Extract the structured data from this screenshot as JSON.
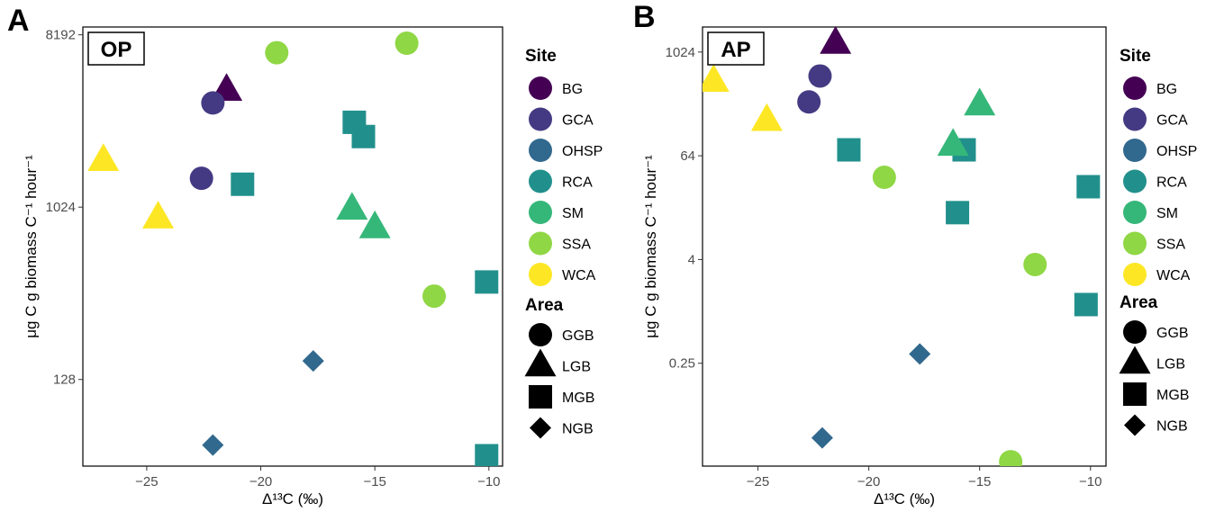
{
  "chart_data": [
    {
      "type": "scatter",
      "panel_letter": "A",
      "tag": "OP",
      "xlabel": "Δ¹³C (‰)",
      "ylabel": "μg C g biomass C⁻¹ hour⁻¹",
      "y_scale": "log2",
      "xlim": [
        -27.8,
        -9.4
      ],
      "ylim": [
        45,
        9000
      ],
      "x_ticks": [
        -25,
        -20,
        -15,
        -10
      ],
      "x_tick_labels": [
        "−25",
        "−20",
        "−15",
        "−10"
      ],
      "y_ticks": [
        128,
        1024,
        8192
      ],
      "y_tick_labels": [
        "128",
        "1024",
        "8192"
      ],
      "points": [
        {
          "site": "BG",
          "area": "LGB",
          "x": -21.5,
          "y": 4200
        },
        {
          "site": "GCA",
          "area": "GGB",
          "x": -22.1,
          "y": 3600
        },
        {
          "site": "GCA",
          "area": "GGB",
          "x": -22.6,
          "y": 1450
        },
        {
          "site": "OHSP",
          "area": "NGB",
          "x": -17.7,
          "y": 160
        },
        {
          "site": "OHSP",
          "area": "NGB",
          "x": -22.1,
          "y": 58
        },
        {
          "site": "RCA",
          "area": "MGB",
          "x": -20.8,
          "y": 1350
        },
        {
          "site": "RCA",
          "area": "MGB",
          "x": -15.9,
          "y": 2850
        },
        {
          "site": "RCA",
          "area": "MGB",
          "x": -15.5,
          "y": 2400
        },
        {
          "site": "RCA",
          "area": "MGB",
          "x": -10.1,
          "y": 415
        },
        {
          "site": "RCA",
          "area": "MGB",
          "x": -10.1,
          "y": 51
        },
        {
          "site": "SM",
          "area": "LGB",
          "x": -16.0,
          "y": 1000
        },
        {
          "site": "SM",
          "area": "LGB",
          "x": -15.0,
          "y": 800
        },
        {
          "site": "SSA",
          "area": "GGB",
          "x": -19.3,
          "y": 6600
        },
        {
          "site": "SSA",
          "area": "GGB",
          "x": -13.6,
          "y": 7400
        },
        {
          "site": "SSA",
          "area": "GGB",
          "x": -12.4,
          "y": 350
        },
        {
          "site": "WCA",
          "area": "LGB",
          "x": -26.9,
          "y": 1800
        },
        {
          "site": "WCA",
          "area": "LGB",
          "x": -24.5,
          "y": 900
        }
      ]
    },
    {
      "type": "scatter",
      "panel_letter": "B",
      "tag": "AP",
      "xlabel": "Δ¹³C (‰)",
      "ylabel": "μg C g biomass C⁻¹ hour⁻¹",
      "y_scale": "log2",
      "xlim": [
        -27.5,
        -9.3
      ],
      "ylim": [
        0.016,
        2000
      ],
      "x_ticks": [
        -25,
        -20,
        -15,
        -10
      ],
      "x_tick_labels": [
        "−25",
        "−20",
        "−15",
        "−10"
      ],
      "y_ticks": [
        0.25,
        4,
        64,
        1024
      ],
      "y_tick_labels": [
        "0.25",
        "4",
        "64",
        "1024"
      ],
      "points": [
        {
          "site": "BG",
          "area": "LGB",
          "x": -21.5,
          "y": 1300
        },
        {
          "site": "GCA",
          "area": "GGB",
          "x": -22.2,
          "y": 540
        },
        {
          "site": "GCA",
          "area": "GGB",
          "x": -22.7,
          "y": 270
        },
        {
          "site": "OHSP",
          "area": "NGB",
          "x": -17.7,
          "y": 0.32
        },
        {
          "site": "OHSP",
          "area": "NGB",
          "x": -22.1,
          "y": 0.034
        },
        {
          "site": "RCA",
          "area": "MGB",
          "x": -20.9,
          "y": 75
        },
        {
          "site": "RCA",
          "area": "MGB",
          "x": -15.7,
          "y": 75
        },
        {
          "site": "RCA",
          "area": "MGB",
          "x": -16.0,
          "y": 14
        },
        {
          "site": "RCA",
          "area": "MGB",
          "x": -10.1,
          "y": 28
        },
        {
          "site": "RCA",
          "area": "MGB",
          "x": -10.2,
          "y": 1.2
        },
        {
          "site": "SM",
          "area": "LGB",
          "x": -16.2,
          "y": 85
        },
        {
          "site": "SM",
          "area": "LGB",
          "x": -15.0,
          "y": 250
        },
        {
          "site": "SSA",
          "area": "GGB",
          "x": -19.3,
          "y": 36
        },
        {
          "site": "SSA",
          "area": "GGB",
          "x": -12.5,
          "y": 3.5
        },
        {
          "site": "SSA",
          "area": "GGB",
          "x": -13.6,
          "y": 0.018
        },
        {
          "site": "WCA",
          "area": "LGB",
          "x": -27.0,
          "y": 470
        },
        {
          "site": "WCA",
          "area": "LGB",
          "x": -24.6,
          "y": 165
        }
      ]
    }
  ],
  "legend": {
    "site_title": "Site",
    "area_title": "Area",
    "sites": [
      {
        "name": "BG",
        "color": "#440154"
      },
      {
        "name": "GCA",
        "color": "#443A83"
      },
      {
        "name": "OHSP",
        "color": "#31688E"
      },
      {
        "name": "RCA",
        "color": "#21908C"
      },
      {
        "name": "SM",
        "color": "#35B779"
      },
      {
        "name": "SSA",
        "color": "#8FD744"
      },
      {
        "name": "WCA",
        "color": "#FDE725"
      }
    ],
    "areas": [
      {
        "name": "GGB",
        "shape": "circle"
      },
      {
        "name": "LGB",
        "shape": "triangle"
      },
      {
        "name": "MGB",
        "shape": "square"
      },
      {
        "name": "NGB",
        "shape": "diamond"
      }
    ]
  }
}
